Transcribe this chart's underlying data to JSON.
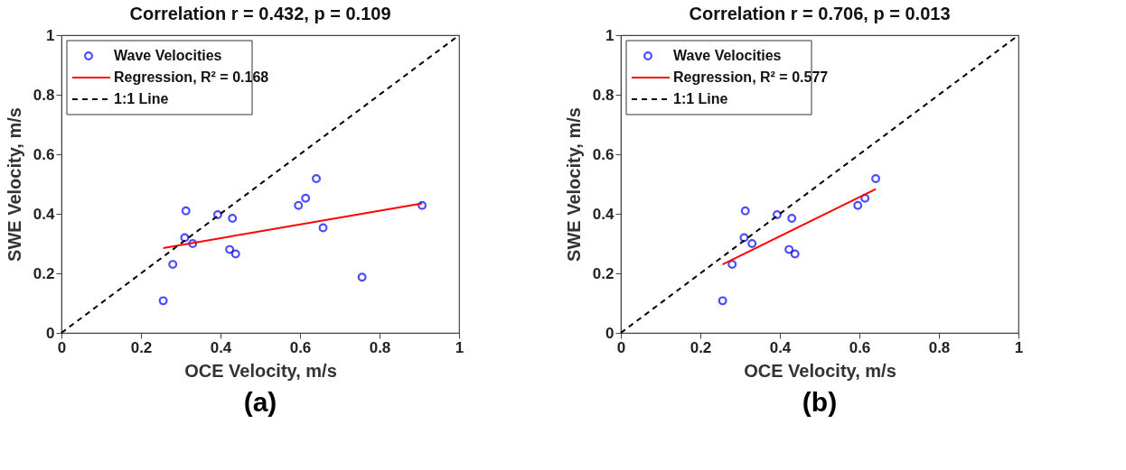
{
  "chart_data": [
    {
      "type": "scatter",
      "title": "Correlation r = 0.432, p = 0.109",
      "xlabel": "OCE Velocity, m/s",
      "ylabel": "SWE Velocity, m/s",
      "xlim": [
        0,
        1
      ],
      "ylim": [
        0,
        1
      ],
      "xticks": [
        0,
        0.2,
        0.4,
        0.6,
        0.8,
        1
      ],
      "yticks": [
        0,
        0.2,
        0.4,
        0.6,
        0.8,
        1
      ],
      "grid": false,
      "legend": "top left",
      "annotations": [
        "(a)"
      ],
      "series": [
        {
          "name": "Wave Velocities",
          "marker": "circle",
          "color": "#0000ff",
          "x": [
            0.256,
            0.28,
            0.31,
            0.313,
            0.33,
            0.393,
            0.423,
            0.43,
            0.438,
            0.596,
            0.614,
            0.641,
            0.658,
            0.756,
            0.907
          ],
          "values": [
            0.108,
            0.23,
            0.32,
            0.41,
            0.3,
            0.397,
            0.28,
            0.385,
            0.265,
            0.428,
            0.452,
            0.518,
            0.353,
            0.187,
            0.428
          ]
        },
        {
          "name": "Regression, R² = 0.168",
          "type": "line",
          "line_style": "solid",
          "color": "#ff0000",
          "x": [
            0.256,
            0.907
          ],
          "values": [
            0.285,
            0.435
          ]
        },
        {
          "name": "1:1 Line",
          "type": "line",
          "line_style": "dashed",
          "color": "#000000",
          "x": [
            0,
            1
          ],
          "values": [
            0,
            1
          ]
        }
      ]
    },
    {
      "type": "scatter",
      "title": "Correlation r = 0.706, p = 0.013",
      "xlabel": "OCE Velocity, m/s",
      "ylabel": "SWE Velocity, m/s",
      "xlim": [
        0,
        1
      ],
      "ylim": [
        0,
        1
      ],
      "xticks": [
        0,
        0.2,
        0.4,
        0.6,
        0.8,
        1
      ],
      "yticks": [
        0,
        0.2,
        0.4,
        0.6,
        0.8,
        1
      ],
      "grid": false,
      "legend": "top left",
      "annotations": [
        "(b)"
      ],
      "series": [
        {
          "name": "Wave Velocities",
          "marker": "circle",
          "color": "#0000ff",
          "x": [
            0.256,
            0.28,
            0.31,
            0.313,
            0.33,
            0.393,
            0.423,
            0.43,
            0.438,
            0.596,
            0.614,
            0.641
          ],
          "values": [
            0.108,
            0.23,
            0.32,
            0.41,
            0.3,
            0.397,
            0.28,
            0.385,
            0.265,
            0.428,
            0.452,
            0.518
          ]
        },
        {
          "name": "Regression, R² = 0.577",
          "type": "line",
          "line_style": "solid",
          "color": "#ff0000",
          "x": [
            0.256,
            0.641
          ],
          "values": [
            0.23,
            0.483
          ]
        },
        {
          "name": "1:1 Line",
          "type": "line",
          "line_style": "dashed",
          "color": "#000000",
          "x": [
            0,
            1
          ],
          "values": [
            0,
            1
          ]
        }
      ]
    }
  ]
}
